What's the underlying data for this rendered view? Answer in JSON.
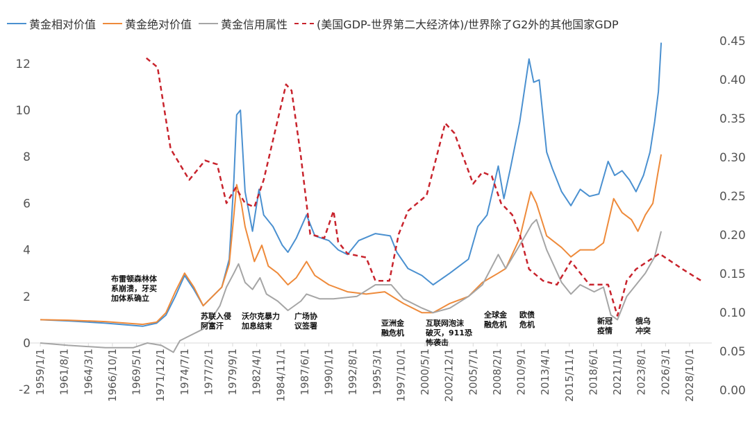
{
  "chart_data": {
    "type": "line",
    "legend_position": "top",
    "grid": false,
    "left_axis": {
      "ylim": [
        -2,
        13
      ],
      "ticks": [
        -2,
        0,
        2,
        4,
        6,
        8,
        10,
        12
      ]
    },
    "right_axis": {
      "ylim": [
        0,
        0.45
      ],
      "ticks": [
        "0.00",
        "0.05",
        "0.10",
        "0.15",
        "0.20",
        "0.25",
        "0.30",
        "0.35",
        "0.40",
        "0.45"
      ]
    },
    "x_ticks": [
      "1959/1/1",
      "1961/8/1",
      "1964/3/1",
      "1966/10/1",
      "1969/5/1",
      "1971/12/1",
      "1974/7/1",
      "1977/2/1",
      "1979/9/1",
      "1982/4/1",
      "1984/11/1",
      "1987/6/1",
      "1990/1/1",
      "1992/8/1",
      "1995/3/1",
      "1997/10/1",
      "2000/5/1",
      "2002/12/1",
      "2005/7/1",
      "2008/2/1",
      "2010/9/1",
      "2013/4/1",
      "2015/11/1",
      "2018/6/1",
      "2021/1/1",
      "2023/8/1",
      "2026/3/1",
      "2028/10/1"
    ],
    "xlim": [
      1959,
      2028.75
    ],
    "series": [
      {
        "name": "黄金相对价值",
        "color": "#4a90d0",
        "axis": "left",
        "dash": false,
        "x": [
          1959,
          1962,
          1966,
          1970,
          1971.5,
          1972.5,
          1973.5,
          1974.5,
          1975.5,
          1976.5,
          1977.5,
          1978.5,
          1979.3,
          1979.8,
          1980.1,
          1980.5,
          1981,
          1981.8,
          1982.5,
          1983,
          1984,
          1985,
          1985.6,
          1986.5,
          1987.6,
          1988.5,
          1990,
          1991,
          1992,
          1993.2,
          1995,
          1996.6,
          1997.3,
          1998.5,
          2000,
          2001.2,
          2003,
          2005,
          2006,
          2007,
          2008.2,
          2008.8,
          2009.5,
          2010.5,
          2011.5,
          2012,
          2012.6,
          2013.4,
          2014,
          2015,
          2016,
          2017,
          2018,
          2019,
          2020,
          2020.7,
          2021.5,
          2022.3,
          2023,
          2023.8,
          2024.5,
          2025,
          2025.4,
          2025.7
        ],
        "y": [
          1.0,
          0.95,
          0.85,
          0.72,
          0.85,
          1.2,
          2.0,
          2.9,
          2.3,
          1.6,
          2.0,
          2.4,
          3.6,
          7.0,
          9.8,
          10.0,
          6.5,
          4.8,
          6.6,
          5.5,
          5.0,
          4.2,
          3.9,
          4.5,
          5.5,
          4.6,
          4.4,
          4.0,
          3.8,
          4.4,
          4.7,
          4.6,
          3.9,
          3.2,
          2.9,
          2.5,
          3.0,
          3.6,
          5.0,
          5.5,
          7.6,
          6.2,
          7.5,
          9.5,
          12.2,
          11.2,
          11.3,
          8.2,
          7.5,
          6.5,
          5.9,
          6.6,
          6.3,
          6.4,
          7.8,
          7.2,
          7.4,
          7.0,
          6.5,
          7.2,
          8.2,
          9.5,
          10.8,
          12.9
        ]
      },
      {
        "name": "黄金绝对价值",
        "color": "#ee8a3a",
        "axis": "left",
        "dash": false,
        "x": [
          1959,
          1962,
          1966,
          1970,
          1971.5,
          1972.5,
          1973.5,
          1974.5,
          1975.5,
          1976.5,
          1977.5,
          1978.5,
          1979.3,
          1979.8,
          1980.1,
          1980.6,
          1981,
          1982,
          1982.8,
          1983.5,
          1984.5,
          1985.6,
          1986.5,
          1987.6,
          1988.5,
          1990,
          1992,
          1994,
          1996,
          1998,
          2000,
          2001.2,
          2003,
          2005,
          2006.5,
          2008.2,
          2009,
          2010.5,
          2011.7,
          2012.3,
          2013.4,
          2015,
          2016,
          2017,
          2018.5,
          2019.5,
          2020.6,
          2021.5,
          2022.5,
          2023.2,
          2024,
          2024.8,
          2025.3,
          2025.7
        ],
        "y": [
          1.0,
          0.98,
          0.92,
          0.8,
          0.9,
          1.3,
          2.2,
          3.0,
          2.4,
          1.6,
          2.0,
          2.4,
          3.4,
          5.5,
          6.8,
          6.0,
          5.0,
          3.5,
          4.2,
          3.3,
          3.0,
          2.5,
          2.8,
          3.5,
          2.9,
          2.5,
          2.2,
          2.1,
          2.2,
          1.7,
          1.3,
          1.3,
          1.7,
          2.0,
          2.6,
          3.0,
          3.2,
          4.5,
          6.5,
          6.0,
          4.6,
          4.1,
          3.7,
          4.0,
          4.0,
          4.3,
          6.2,
          5.6,
          5.3,
          4.8,
          5.5,
          6.0,
          7.2,
          8.1
        ]
      },
      {
        "name": "黄金信用属性",
        "color": "#a5a5a5",
        "axis": "left",
        "dash": false,
        "x": [
          1959,
          1962,
          1966,
          1969,
          1970.5,
          1972,
          1973.3,
          1974,
          1975,
          1976.5,
          1977.5,
          1978.3,
          1979,
          1979.8,
          1980.3,
          1981,
          1981.8,
          1982.6,
          1983.3,
          1984.5,
          1985.6,
          1987,
          1987.6,
          1989,
          1990.5,
          1993,
          1995,
          1996.7,
          1998,
          2000,
          2001.2,
          2003,
          2005,
          2006.5,
          2008.2,
          2009,
          2010.5,
          2011.8,
          2012.3,
          2013.4,
          2015,
          2016,
          2017,
          2018.5,
          2019.5,
          2020.3,
          2021,
          2022,
          2023,
          2024,
          2025,
          2025.7
        ],
        "y": [
          0,
          -0.1,
          -0.2,
          -0.2,
          0,
          -0.1,
          -0.4,
          0.1,
          0.3,
          0.6,
          1.1,
          1.6,
          2.4,
          3.0,
          3.4,
          2.6,
          2.3,
          2.8,
          2.1,
          1.8,
          1.4,
          1.8,
          2.1,
          1.9,
          1.9,
          2.0,
          2.5,
          2.5,
          1.9,
          1.5,
          1.3,
          1.5,
          2.0,
          2.5,
          3.8,
          3.2,
          4.2,
          5.1,
          5.3,
          4.0,
          2.6,
          2.1,
          2.5,
          2.2,
          2.4,
          1.2,
          1.0,
          2.0,
          2.5,
          3.0,
          3.7,
          4.8
        ]
      },
      {
        "name": "(美国GDP-世界第二大经济体)/世界除了G2外的其他国家GDP",
        "color": "#c8232c",
        "axis": "right",
        "dash": true,
        "x": [
          1970.4,
          1971.6,
          1973,
          1975,
          1976.7,
          1978,
          1979,
          1980,
          1981,
          1982,
          1983,
          1985.4,
          1986,
          1987,
          1988,
          1989.5,
          1990.5,
          1991,
          1992,
          1994,
          1995,
          1996.5,
          1997.5,
          1998.5,
          2000.5,
          2002.5,
          2003.5,
          2005.5,
          2006.5,
          2007.5,
          2008.5,
          2009.7,
          2010.5,
          2011.5,
          2013,
          2014.5,
          2016,
          2017,
          2018,
          2020,
          2021,
          2022,
          2023,
          2025.5,
          2028,
          2030
        ],
        "y": [
          0.427,
          0.415,
          0.31,
          0.27,
          0.295,
          0.29,
          0.24,
          0.26,
          0.24,
          0.235,
          0.27,
          0.393,
          0.385,
          0.3,
          0.2,
          0.195,
          0.23,
          0.19,
          0.175,
          0.17,
          0.14,
          0.14,
          0.2,
          0.23,
          0.25,
          0.343,
          0.33,
          0.265,
          0.28,
          0.275,
          0.24,
          0.225,
          0.2,
          0.155,
          0.14,
          0.135,
          0.165,
          0.15,
          0.135,
          0.135,
          0.095,
          0.14,
          0.155,
          0.175,
          0.155,
          0.14
        ]
      }
    ]
  },
  "annotations": [
    {
      "text": "布雷顿森林体\n系崩溃，牙买\n加体系确立"
    },
    {
      "text": "苏联入侵\n阿富汗"
    },
    {
      "text": "沃尔克暴力\n加息结束"
    },
    {
      "text": "广场协\n议签署"
    },
    {
      "text": "亚洲金\n融危机"
    },
    {
      "text": "互联网泡沫\n破灭，911恐\n怖袭击"
    },
    {
      "text": "全球金\n融危机"
    },
    {
      "text": "欧债\n危机"
    },
    {
      "text": "新冠\n疫情"
    },
    {
      "text": "俄乌\n冲突"
    }
  ]
}
